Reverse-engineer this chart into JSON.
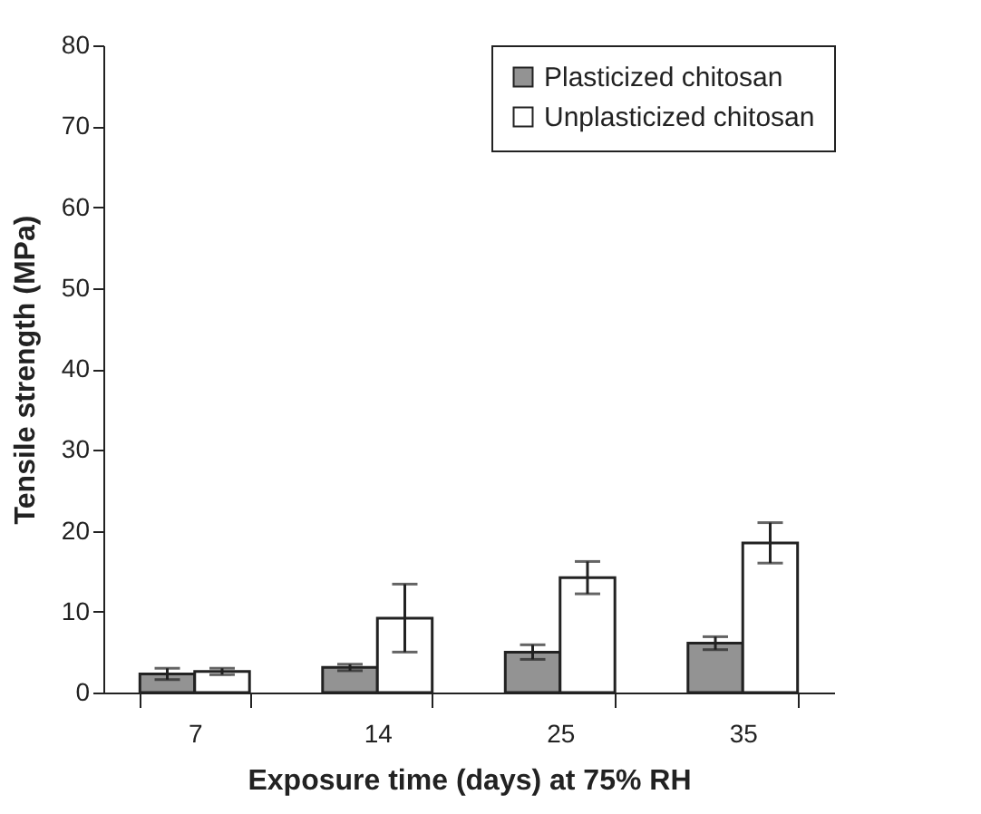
{
  "chart_data": {
    "type": "bar",
    "xlabel": "Exposure time (days) at 75% RH",
    "ylabel": "Tensile strength (MPa)",
    "categories": [
      "7",
      "14",
      "25",
      "35"
    ],
    "series": [
      {
        "name": "Plasticized chitosan",
        "color": "#939393",
        "values": [
          2.3,
          3.1,
          5.0,
          6.1
        ],
        "errors": [
          0.7,
          0.4,
          0.9,
          0.8
        ]
      },
      {
        "name": "Unplasticized chitosan",
        "color": "#ffffff",
        "values": [
          2.6,
          9.2,
          14.2,
          18.5
        ],
        "errors": [
          0.4,
          4.2,
          2.0,
          2.5
        ]
      }
    ],
    "ylim": [
      0,
      80
    ],
    "yticks": [
      0,
      10,
      20,
      30,
      40,
      50,
      60,
      70,
      80
    ],
    "grid": false,
    "legend": "top right"
  }
}
